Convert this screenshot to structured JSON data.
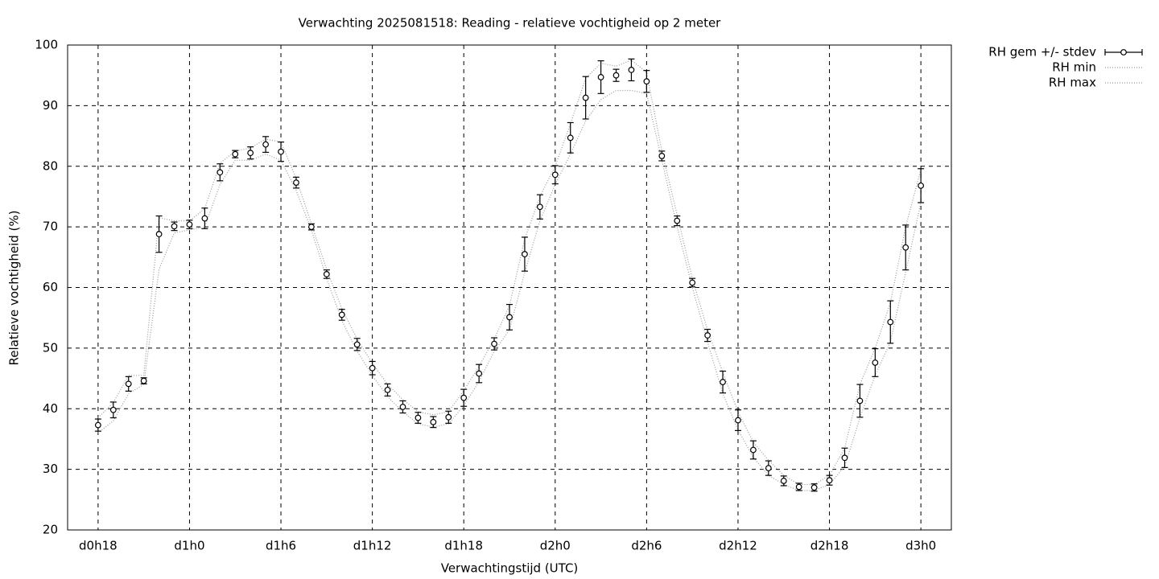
{
  "chart_data": {
    "type": "errorbar",
    "title": "Verwachting 2025081518: Reading - relatieve vochtigheid op 2 meter",
    "xlabel": "Verwachtingstijd (UTC)",
    "ylabel": "Relatieve vochtigheid (%)",
    "x": [
      18,
      19,
      20,
      21,
      22,
      23,
      24,
      25,
      26,
      27,
      28,
      29,
      30,
      31,
      32,
      33,
      34,
      35,
      36,
      37,
      38,
      39,
      40,
      41,
      42,
      43,
      44,
      45,
      46,
      47,
      48,
      49,
      50,
      51,
      52,
      53,
      54,
      55,
      56,
      57,
      58,
      59,
      60,
      61,
      62,
      63,
      64,
      65,
      66,
      67,
      68,
      69,
      70,
      71,
      72
    ],
    "series": [
      {
        "name": "RH gem +/- stdev",
        "color": "#000000",
        "values": [
          37.3,
          39.8,
          44.1,
          44.6,
          68.8,
          70.1,
          70.4,
          71.4,
          79.0,
          82.0,
          82.2,
          83.6,
          82.4,
          77.3,
          70.0,
          62.2,
          55.5,
          50.6,
          46.7,
          43.1,
          40.3,
          38.5,
          37.8,
          38.6,
          41.8,
          45.8,
          50.7,
          55.1,
          65.5,
          73.3,
          78.6,
          84.7,
          91.3,
          94.7,
          95.0,
          95.9,
          94.0,
          81.7,
          71.0,
          60.8,
          52.1,
          44.4,
          38.1,
          33.2,
          30.2,
          28.1,
          27.1,
          27.0,
          28.2,
          31.9,
          41.3,
          47.6,
          54.3,
          66.6,
          76.8
        ],
        "errors": [
          1.0,
          1.3,
          1.2,
          0.5,
          3.0,
          0.7,
          0.7,
          1.7,
          1.4,
          0.6,
          1.0,
          1.3,
          1.6,
          0.9,
          0.5,
          0.7,
          0.9,
          1.0,
          1.1,
          1.0,
          1.0,
          0.9,
          0.9,
          1.0,
          1.4,
          1.5,
          1.0,
          2.1,
          2.8,
          2.0,
          1.5,
          2.5,
          3.5,
          2.7,
          1.0,
          1.8,
          1.8,
          0.8,
          0.8,
          0.7,
          1.0,
          1.8,
          1.7,
          1.5,
          1.2,
          0.8,
          0.6,
          0.6,
          0.8,
          1.6,
          2.7,
          2.3,
          3.5,
          3.7,
          2.8
        ]
      },
      {
        "name": "RH min",
        "color": "#9a9a9a",
        "values": [
          36,
          38,
          42.5,
          44,
          63,
          69,
          69.5,
          70,
          77,
          81,
          81,
          82,
          81,
          76,
          69.5,
          61.5,
          54.5,
          49.5,
          45.5,
          42,
          39.5,
          37.5,
          37,
          37.5,
          40.5,
          44.5,
          49.5,
          53,
          62.5,
          71,
          77,
          82,
          87.5,
          91,
          92.5,
          92.5,
          92,
          81,
          70,
          60,
          51,
          42.5,
          36.5,
          32,
          29,
          27.5,
          26.5,
          26.5,
          27.5,
          30.5,
          38.5,
          45.5,
          51,
          62.5,
          74
        ]
      },
      {
        "name": "RH max",
        "color": "#9a9a9a",
        "values": [
          38.5,
          41,
          45.5,
          45.5,
          71.5,
          71,
          71,
          73,
          80.5,
          82.5,
          83,
          84.5,
          84,
          78,
          70.5,
          63,
          56.5,
          51.5,
          47.5,
          44,
          41.5,
          39.5,
          39,
          39.5,
          43,
          47,
          51.5,
          57,
          68,
          75,
          80,
          87,
          94.5,
          97,
          96.5,
          97.5,
          95.5,
          82.5,
          72,
          61.5,
          53,
          46,
          39.5,
          34.5,
          31.5,
          29,
          27.5,
          27.5,
          29,
          33.5,
          44,
          50,
          57.5,
          70,
          79.5
        ]
      }
    ],
    "xlim": [
      16,
      74
    ],
    "xticks": [
      {
        "value": 18,
        "label": "d0h18"
      },
      {
        "value": 24,
        "label": "d1h0"
      },
      {
        "value": 30,
        "label": "d1h6"
      },
      {
        "value": 36,
        "label": "d1h12"
      },
      {
        "value": 42,
        "label": "d1h18"
      },
      {
        "value": 48,
        "label": "d2h0"
      },
      {
        "value": 54,
        "label": "d2h6"
      },
      {
        "value": 60,
        "label": "d2h12"
      },
      {
        "value": 66,
        "label": "d2h18"
      },
      {
        "value": 72,
        "label": "d3h0"
      }
    ],
    "ylim": [
      20,
      100
    ],
    "yticks": [
      20,
      30,
      40,
      50,
      60,
      70,
      80,
      90,
      100
    ],
    "grid": true,
    "legend": "outside-top-right"
  }
}
